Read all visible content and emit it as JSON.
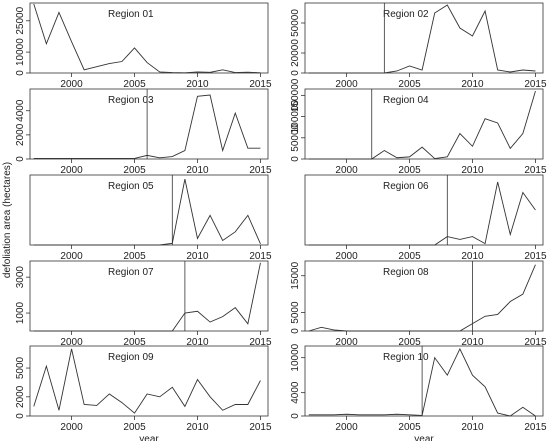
{
  "ylabel": "defoliation area (hectares)",
  "chart_data": [
    {
      "type": "line",
      "title": "Region 01",
      "x": [
        1997,
        1998,
        1999,
        2000,
        2001,
        2002,
        2003,
        2004,
        2005,
        2006,
        2007,
        2008,
        2009,
        2010,
        2011,
        2012,
        2013,
        2014,
        2015
      ],
      "values": [
        33000,
        14000,
        29000,
        15000,
        1500,
        3000,
        4500,
        5500,
        12000,
        5000,
        500,
        200,
        100,
        500,
        300,
        1500,
        200,
        400,
        100
      ],
      "color": "#333333",
      "xlim": [
        1996.7,
        2015.6
      ],
      "ylim": [
        0,
        33500
      ],
      "xticks": [
        2000,
        2005,
        2010,
        2015
      ],
      "yticks": [
        0,
        10000,
        25000
      ]
    },
    {
      "type": "line",
      "title": "Region 02",
      "x": [
        1997,
        1998,
        1999,
        2000,
        2001,
        2002,
        2003,
        2004,
        2005,
        2006,
        2007,
        2008,
        2009,
        2010,
        2011,
        2012,
        2013,
        2014,
        2015
      ],
      "values": [
        0,
        0,
        0,
        0,
        0,
        0,
        0,
        2000,
        7000,
        3000,
        60000,
        68000,
        45000,
        37000,
        62000,
        3000,
        1000,
        3000,
        2000
      ],
      "color": "#333333",
      "xlim": [
        1996.7,
        2015.6
      ],
      "ylim": [
        0,
        70000
      ],
      "xticks": [
        2000,
        2005,
        2010,
        2015
      ],
      "yticks": [
        0,
        20000,
        50000
      ],
      "vline": 2003
    },
    {
      "type": "line",
      "title": "Region 03",
      "x": [
        1997,
        1998,
        1999,
        2000,
        2001,
        2002,
        2003,
        2004,
        2005,
        2006,
        2007,
        2008,
        2009,
        2010,
        2011,
        2012,
        2013,
        2014,
        2015
      ],
      "values": [
        50,
        50,
        50,
        50,
        50,
        50,
        50,
        50,
        50,
        300,
        100,
        200,
        700,
        5200,
        5300,
        700,
        3800,
        900,
        900
      ],
      "color": "#333333",
      "xlim": [
        1996.7,
        2015.6
      ],
      "ylim": [
        0,
        5800
      ],
      "xticks": [
        2000,
        2005,
        2010,
        2015
      ],
      "yticks": [
        0,
        2000,
        4000
      ],
      "vline": 2006
    },
    {
      "type": "line",
      "title": "Region 04",
      "x": [
        1997,
        1998,
        1999,
        2000,
        2001,
        2002,
        2003,
        2004,
        2005,
        2006,
        2007,
        2008,
        2009,
        2010,
        2011,
        2012,
        2013,
        2014,
        2015
      ],
      "values": [
        0,
        0,
        0,
        0,
        0,
        0,
        20000,
        3000,
        5000,
        28000,
        1000,
        5000,
        60000,
        30000,
        95000,
        85000,
        25000,
        60000,
        160000
      ],
      "color": "#333333",
      "xlim": [
        1996.7,
        2015.6
      ],
      "ylim": [
        0,
        165000
      ],
      "xticks": [
        2000,
        2005,
        2010,
        2015
      ],
      "yticks": [
        0,
        50000,
        100000,
        150000
      ],
      "vline": 2002
    },
    {
      "type": "line",
      "title": "Region 05",
      "x": [
        1997,
        1998,
        1999,
        2000,
        2001,
        2002,
        2003,
        2004,
        2005,
        2006,
        2007,
        2008,
        2009,
        2010,
        2011,
        2012,
        2013,
        2014,
        2015
      ],
      "values": [
        0,
        0,
        0,
        0,
        0,
        0,
        0,
        0,
        0,
        0,
        0,
        40,
        1600,
        160,
        720,
        110,
        320,
        720,
        30
      ],
      "color": "#333333",
      "xlim": [
        1996.7,
        2015.6
      ],
      "ylim": [
        0,
        1700
      ],
      "xticks": [
        2000,
        2005,
        2010,
        2015
      ],
      "vline": 2008
    },
    {
      "type": "line",
      "title": "Region 06",
      "x": [
        1997,
        1998,
        1999,
        2000,
        2001,
        2002,
        2003,
        2004,
        2005,
        2006,
        2007,
        2008,
        2009,
        2010,
        2011,
        2012,
        2013,
        2014,
        2015
      ],
      "values": [
        0,
        0,
        0,
        0,
        0,
        0,
        0,
        0,
        0,
        0,
        0,
        120,
        80,
        120,
        20,
        900,
        150,
        750,
        500
      ],
      "color": "#333333",
      "xlim": [
        1996.7,
        2015.6
      ],
      "ylim": [
        0,
        1000
      ],
      "xticks": [
        2000,
        2005,
        2010,
        2015
      ],
      "vline": 2008
    },
    {
      "type": "line",
      "title": "Region 07",
      "x": [
        1997,
        1998,
        1999,
        2000,
        2001,
        2002,
        2003,
        2004,
        2005,
        2006,
        2007,
        2008,
        2009,
        2010,
        2011,
        2012,
        2013,
        2014,
        2015
      ],
      "values": [
        0,
        0,
        0,
        0,
        0,
        0,
        0,
        0,
        0,
        0,
        0,
        0,
        1000,
        1100,
        500,
        800,
        1300,
        400,
        3800
      ],
      "color": "#333333",
      "xlim": [
        1996.7,
        2015.6
      ],
      "ylim": [
        0,
        3900
      ],
      "xticks": [
        2000,
        2005,
        2010,
        2015
      ],
      "yticks": [
        1000,
        3000
      ],
      "vline": 2009
    },
    {
      "type": "line",
      "title": "Region 08",
      "x": [
        1997,
        1998,
        1999,
        2000,
        2001,
        2002,
        2003,
        2004,
        2005,
        2006,
        2007,
        2008,
        2009,
        2010,
        2011,
        2012,
        2013,
        2014,
        2015
      ],
      "values": [
        0,
        1000,
        300,
        0,
        0,
        0,
        0,
        0,
        0,
        0,
        0,
        0,
        0,
        2000,
        4000,
        4500,
        8000,
        10000,
        18000
      ],
      "color": "#333333",
      "xlim": [
        1996.7,
        2015.6
      ],
      "ylim": [
        0,
        19000
      ],
      "xticks": [
        2000,
        2005,
        2010,
        2015
      ],
      "yticks": [
        0,
        5000,
        15000
      ],
      "vline": 2010
    },
    {
      "type": "line",
      "title": "Region 09",
      "x": [
        1997,
        1998,
        1999,
        2000,
        2001,
        2002,
        2003,
        2004,
        2005,
        2006,
        2007,
        2008,
        2009,
        2010,
        2011,
        2012,
        2013,
        2014,
        2015
      ],
      "values": [
        1000,
        5200,
        600,
        7000,
        1200,
        1100,
        2300,
        1400,
        300,
        2300,
        2000,
        3000,
        1000,
        3800,
        2000,
        600,
        1200,
        1200,
        3700
      ],
      "color": "#333333",
      "xlim": [
        1996.7,
        2015.6
      ],
      "ylim": [
        0,
        7300
      ],
      "xticks": [
        2000,
        2005,
        2010,
        2015
      ],
      "yticks": [
        0,
        2000,
        5000
      ],
      "xlabel": "year"
    },
    {
      "type": "line",
      "title": "Region 10",
      "x": [
        1997,
        1998,
        1999,
        2000,
        2001,
        2002,
        2003,
        2004,
        2005,
        2006,
        2007,
        2008,
        2009,
        2010,
        2011,
        2012,
        2013,
        2014,
        2015
      ],
      "values": [
        200,
        200,
        200,
        300,
        200,
        200,
        200,
        300,
        200,
        100,
        10000,
        7000,
        11500,
        7000,
        5000,
        500,
        0,
        1500,
        0
      ],
      "color": "#333333",
      "xlim": [
        1996.7,
        2015.6
      ],
      "ylim": [
        0,
        12000
      ],
      "xticks": [
        2000,
        2005,
        2010,
        2015
      ],
      "yticks": [
        0,
        4000,
        10000
      ],
      "vline": 2006,
      "xlabel": "year"
    }
  ]
}
